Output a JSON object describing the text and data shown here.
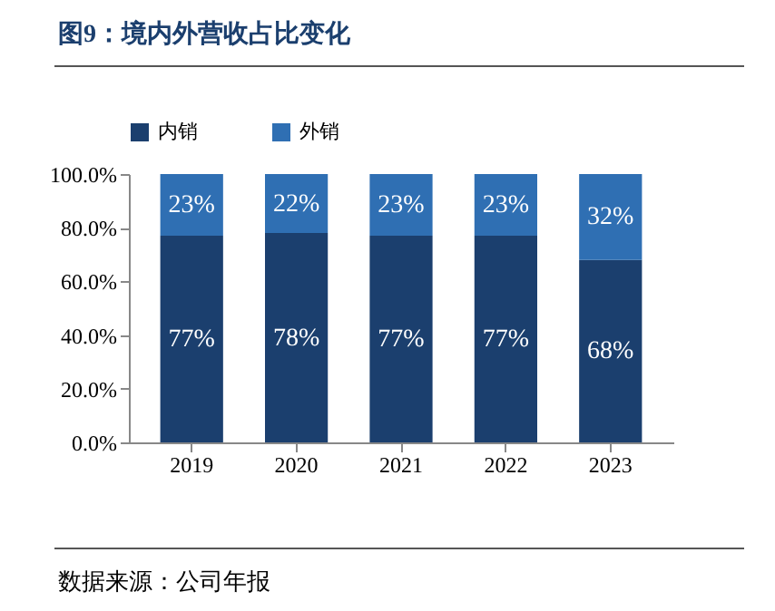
{
  "chart_data": {
    "type": "bar",
    "title": "图9：境内外营收占比变化",
    "stacked": true,
    "legend": "top",
    "grid": false,
    "categories": [
      "2019",
      "2020",
      "2021",
      "2022",
      "2023"
    ],
    "series": [
      {
        "name": "内销",
        "color": "#1b3f6e",
        "values": [
          77,
          78,
          77,
          77,
          68
        ],
        "value_labels": [
          "77%",
          "78%",
          "77%",
          "77%",
          "68%"
        ]
      },
      {
        "name": "外销",
        "color": "#2f6fb3",
        "values": [
          23,
          22,
          23,
          23,
          32
        ],
        "value_labels": [
          "23%",
          "22%",
          "23%",
          "23%",
          "32%"
        ]
      }
    ],
    "ylim": [
      0,
      100
    ],
    "yticks": [
      {
        "value": 0,
        "label": "0.0%"
      },
      {
        "value": 20,
        "label": "20.0%"
      },
      {
        "value": 40,
        "label": "40.0%"
      },
      {
        "value": 60,
        "label": "60.0%"
      },
      {
        "value": 80,
        "label": "80.0%"
      },
      {
        "value": 100,
        "label": "100.0%"
      }
    ],
    "annotations": [
      "数据来源：公司年报"
    ]
  }
}
